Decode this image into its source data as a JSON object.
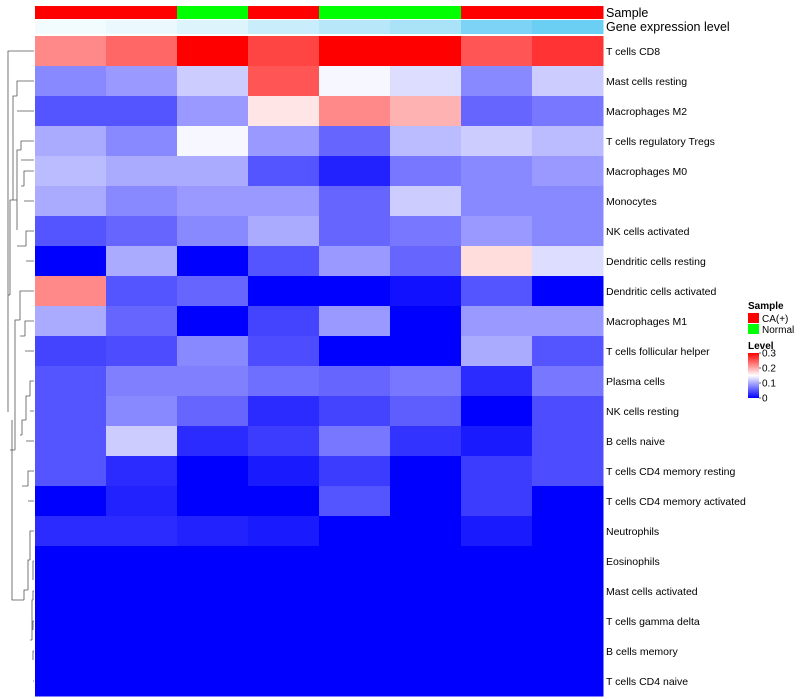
{
  "chart_data": {
    "type": "heatmap",
    "annotation_labels": {
      "sample": "Sample",
      "expression": "Gene expression level"
    },
    "sample_annotation": [
      "CA(+)",
      "CA(+)",
      "Normal",
      "CA(+)",
      "Normal",
      "Normal",
      "CA(+)",
      "CA(+)"
    ],
    "expression_annotation": [
      0.08,
      0.12,
      0.2,
      0.33,
      0.43,
      0.52,
      0.8,
      0.9
    ],
    "rows": [
      "T cells CD8",
      "Mast cells resting",
      "Macrophages M2",
      "T cells regulatory  Tregs",
      "Macrophages M0",
      "Monocytes",
      "NK cells activated",
      "Dendritic cells resting",
      "Dendritic cells activated",
      "Macrophages M1",
      "T cells follicular helper",
      "Plasma cells",
      "NK cells resting",
      "B cells naive",
      "T cells CD4 memory resting",
      "T cells CD4 memory activated",
      "Neutrophils",
      "Eosinophils",
      "Mast cells activated",
      "T cells gamma delta",
      "B cells memory",
      "T cells CD4 naive"
    ],
    "values": [
      [
        0.22,
        0.24,
        0.3,
        0.26,
        0.3,
        0.3,
        0.25,
        0.27
      ],
      [
        0.08,
        0.09,
        0.12,
        0.25,
        0.145,
        0.13,
        0.08,
        0.12
      ],
      [
        0.05,
        0.05,
        0.09,
        0.165,
        0.22,
        0.195,
        0.06,
        0.07
      ],
      [
        0.1,
        0.08,
        0.145,
        0.09,
        0.06,
        0.11,
        0.12,
        0.11
      ],
      [
        0.11,
        0.1,
        0.1,
        0.05,
        0.02,
        0.07,
        0.08,
        0.09
      ],
      [
        0.1,
        0.08,
        0.09,
        0.09,
        0.06,
        0.12,
        0.08,
        0.08
      ],
      [
        0.05,
        0.06,
        0.08,
        0.1,
        0.06,
        0.07,
        0.09,
        0.08
      ],
      [
        0.0,
        0.1,
        0.0,
        0.05,
        0.09,
        0.06,
        0.17,
        0.13
      ],
      [
        0.22,
        0.05,
        0.06,
        0.0,
        0.0,
        0.01,
        0.05,
        0.0
      ],
      [
        0.1,
        0.06,
        0.0,
        0.04,
        0.09,
        0.0,
        0.09,
        0.09
      ],
      [
        0.04,
        0.045,
        0.08,
        0.045,
        0.0,
        0.0,
        0.1,
        0.05
      ],
      [
        0.05,
        0.075,
        0.075,
        0.065,
        0.06,
        0.07,
        0.025,
        0.07
      ],
      [
        0.05,
        0.08,
        0.06,
        0.025,
        0.04,
        0.055,
        0.0,
        0.045
      ],
      [
        0.05,
        0.12,
        0.025,
        0.035,
        0.07,
        0.03,
        0.015,
        0.045
      ],
      [
        0.05,
        0.025,
        0.0,
        0.015,
        0.035,
        0.0,
        0.035,
        0.045
      ],
      [
        0.0,
        0.02,
        0.0,
        0.0,
        0.05,
        0.0,
        0.035,
        0.0
      ],
      [
        0.025,
        0.025,
        0.02,
        0.015,
        0.0,
        0.0,
        0.015,
        0.0
      ],
      [
        0,
        0,
        0,
        0,
        0,
        0,
        0,
        0
      ],
      [
        0,
        0,
        0,
        0,
        0,
        0,
        0,
        0
      ],
      [
        0,
        0,
        0,
        0,
        0,
        0,
        0,
        0
      ],
      [
        0,
        0,
        0,
        0,
        0,
        0,
        0,
        0
      ],
      [
        0,
        0,
        0,
        0,
        0,
        0,
        0,
        0
      ]
    ],
    "color_scale": {
      "min": 0,
      "mid": 0.15,
      "max": 0.3,
      "low_color": "#0000ff",
      "mid_color": "#ffffff",
      "high_color": "#ff0000"
    },
    "expression_scale": {
      "low_color": "#ffffff",
      "high_color": "#5bc8f2"
    },
    "legend": {
      "placement": "right",
      "sample_title": "Sample",
      "sample_entries": [
        {
          "label": "CA(+)",
          "color": "#ff0000"
        },
        {
          "label": "Normal",
          "color": "#00ff00"
        }
      ],
      "level_title": "Level",
      "level_ticks": [
        "0.3",
        "0.2",
        "0.1",
        "0"
      ]
    }
  }
}
